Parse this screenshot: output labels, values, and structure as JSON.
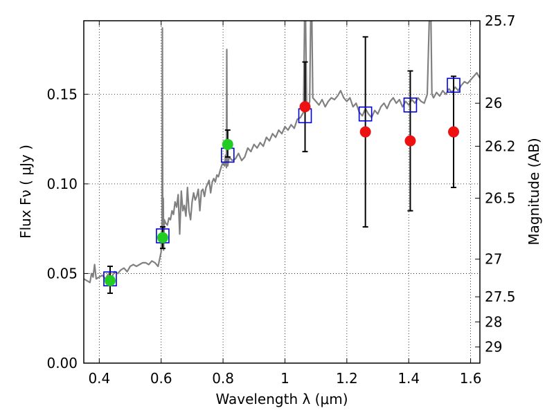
{
  "chart_data": {
    "type": "scatter",
    "xlabel": "Wavelength  λ (μm)",
    "ylabel": "Flux  Fν  ( μJy )",
    "y2label": "Magnitude (AB)",
    "xlim": [
      0.35,
      1.63
    ],
    "ylim": [
      0.0,
      0.191
    ],
    "x_ticks": [
      0.4,
      0.6,
      0.8,
      1.0,
      1.2,
      1.4,
      1.6
    ],
    "x_tick_labels": [
      "0.4",
      "0.6",
      "0.8",
      "1",
      "1.2",
      "1.4",
      "1.6"
    ],
    "y_ticks": [
      0.0,
      0.05,
      0.1,
      0.15
    ],
    "y_tick_labels": [
      "0.00",
      "0.05",
      "0.10",
      "0.15"
    ],
    "y2_ticks": [
      {
        "label": "25.7",
        "flux": 0.191
      },
      {
        "label": "26",
        "flux": 0.145
      },
      {
        "label": "26.2",
        "flux": 0.121
      },
      {
        "label": "26.5",
        "flux": 0.092
      },
      {
        "label": "27",
        "flux": 0.058
      },
      {
        "label": "27.5",
        "flux": 0.037
      },
      {
        "label": "28",
        "flux": 0.023
      },
      {
        "label": "29",
        "flux": 0.009
      }
    ],
    "grid": true,
    "colors": {
      "model": "#808080",
      "green": "#22cc22",
      "red": "#ee1111",
      "box": "#0000dd",
      "error": "#000000"
    },
    "series": [
      {
        "name": "model spectrum",
        "kind": "line",
        "points": [
          [
            0.35,
            0.047
          ],
          [
            0.36,
            0.046
          ],
          [
            0.37,
            0.045
          ],
          [
            0.375,
            0.05
          ],
          [
            0.38,
            0.048
          ],
          [
            0.385,
            0.055
          ],
          [
            0.39,
            0.047
          ],
          [
            0.4,
            0.048
          ],
          [
            0.41,
            0.049
          ],
          [
            0.42,
            0.047
          ],
          [
            0.43,
            0.05
          ],
          [
            0.44,
            0.048
          ],
          [
            0.45,
            0.051
          ],
          [
            0.46,
            0.05
          ],
          [
            0.47,
            0.052
          ],
          [
            0.48,
            0.053
          ],
          [
            0.49,
            0.051
          ],
          [
            0.5,
            0.054
          ],
          [
            0.51,
            0.055
          ],
          [
            0.52,
            0.054
          ],
          [
            0.53,
            0.055
          ],
          [
            0.54,
            0.056
          ],
          [
            0.55,
            0.056
          ],
          [
            0.56,
            0.055
          ],
          [
            0.57,
            0.057
          ],
          [
            0.58,
            0.056
          ],
          [
            0.59,
            0.054
          ],
          [
            0.595,
            0.058
          ],
          [
            0.6,
            0.062
          ],
          [
            0.601,
            0.07
          ],
          [
            0.602,
            0.075
          ],
          [
            0.603,
            0.078
          ],
          [
            0.604,
            0.187
          ],
          [
            0.605,
            0.078
          ],
          [
            0.606,
            0.075
          ],
          [
            0.607,
            0.092
          ],
          [
            0.608,
            0.063
          ],
          [
            0.61,
            0.08
          ],
          [
            0.615,
            0.078
          ],
          [
            0.62,
            0.077
          ],
          [
            0.625,
            0.081
          ],
          [
            0.63,
            0.08
          ],
          [
            0.635,
            0.085
          ],
          [
            0.64,
            0.083
          ],
          [
            0.645,
            0.09
          ],
          [
            0.65,
            0.087
          ],
          [
            0.655,
            0.094
          ],
          [
            0.66,
            0.072
          ],
          [
            0.665,
            0.096
          ],
          [
            0.67,
            0.085
          ],
          [
            0.675,
            0.088
          ],
          [
            0.68,
            0.082
          ],
          [
            0.685,
            0.098
          ],
          [
            0.69,
            0.085
          ],
          [
            0.695,
            0.08
          ],
          [
            0.7,
            0.09
          ],
          [
            0.705,
            0.095
          ],
          [
            0.71,
            0.091
          ],
          [
            0.715,
            0.093
          ],
          [
            0.72,
            0.097
          ],
          [
            0.725,
            0.085
          ],
          [
            0.73,
            0.096
          ],
          [
            0.735,
            0.097
          ],
          [
            0.74,
            0.093
          ],
          [
            0.745,
            0.098
          ],
          [
            0.75,
            0.1
          ],
          [
            0.755,
            0.102
          ],
          [
            0.76,
            0.095
          ],
          [
            0.765,
            0.101
          ],
          [
            0.77,
            0.103
          ],
          [
            0.775,
            0.101
          ],
          [
            0.78,
            0.105
          ],
          [
            0.785,
            0.104
          ],
          [
            0.79,
            0.107
          ],
          [
            0.795,
            0.11
          ],
          [
            0.8,
            0.112
          ],
          [
            0.805,
            0.11
          ],
          [
            0.808,
            0.116
          ],
          [
            0.811,
            0.109
          ],
          [
            0.812,
            0.175
          ],
          [
            0.813,
            0.118
          ],
          [
            0.815,
            0.11
          ],
          [
            0.82,
            0.115
          ],
          [
            0.83,
            0.113
          ],
          [
            0.84,
            0.114
          ],
          [
            0.85,
            0.117
          ],
          [
            0.86,
            0.113
          ],
          [
            0.87,
            0.115
          ],
          [
            0.88,
            0.12
          ],
          [
            0.89,
            0.118
          ],
          [
            0.9,
            0.122
          ],
          [
            0.91,
            0.12
          ],
          [
            0.92,
            0.123
          ],
          [
            0.93,
            0.121
          ],
          [
            0.94,
            0.126
          ],
          [
            0.95,
            0.124
          ],
          [
            0.96,
            0.128
          ],
          [
            0.97,
            0.126
          ],
          [
            0.98,
            0.13
          ],
          [
            0.99,
            0.128
          ],
          [
            1.0,
            0.132
          ],
          [
            1.01,
            0.13
          ],
          [
            1.02,
            0.133
          ],
          [
            1.03,
            0.131
          ],
          [
            1.04,
            0.136
          ],
          [
            1.05,
            0.137
          ],
          [
            1.06,
            0.14
          ],
          [
            1.065,
            0.215
          ],
          [
            1.07,
            0.145
          ],
          [
            1.075,
            0.142
          ],
          [
            1.08,
            0.146
          ],
          [
            1.085,
            0.22
          ],
          [
            1.09,
            0.148
          ],
          [
            1.1,
            0.146
          ],
          [
            1.11,
            0.144
          ],
          [
            1.12,
            0.147
          ],
          [
            1.13,
            0.143
          ],
          [
            1.14,
            0.146
          ],
          [
            1.15,
            0.148
          ],
          [
            1.16,
            0.147
          ],
          [
            1.17,
            0.149
          ],
          [
            1.18,
            0.152
          ],
          [
            1.19,
            0.148
          ],
          [
            1.2,
            0.146
          ],
          [
            1.21,
            0.148
          ],
          [
            1.22,
            0.143
          ],
          [
            1.23,
            0.145
          ],
          [
            1.24,
            0.14
          ],
          [
            1.25,
            0.138
          ],
          [
            1.26,
            0.142
          ],
          [
            1.27,
            0.139
          ],
          [
            1.28,
            0.137
          ],
          [
            1.29,
            0.141
          ],
          [
            1.3,
            0.139
          ],
          [
            1.31,
            0.143
          ],
          [
            1.32,
            0.145
          ],
          [
            1.33,
            0.142
          ],
          [
            1.34,
            0.146
          ],
          [
            1.35,
            0.148
          ],
          [
            1.36,
            0.145
          ],
          [
            1.37,
            0.147
          ],
          [
            1.38,
            0.143
          ],
          [
            1.39,
            0.146
          ],
          [
            1.4,
            0.144
          ],
          [
            1.41,
            0.147
          ],
          [
            1.42,
            0.145
          ],
          [
            1.43,
            0.148
          ],
          [
            1.44,
            0.146
          ],
          [
            1.45,
            0.145
          ],
          [
            1.46,
            0.15
          ],
          [
            1.47,
            0.215
          ],
          [
            1.475,
            0.15
          ],
          [
            1.48,
            0.148
          ],
          [
            1.49,
            0.151
          ],
          [
            1.5,
            0.149
          ],
          [
            1.51,
            0.152
          ],
          [
            1.52,
            0.15
          ],
          [
            1.53,
            0.153
          ],
          [
            1.54,
            0.151
          ],
          [
            1.55,
            0.154
          ],
          [
            1.56,
            0.152
          ],
          [
            1.57,
            0.155
          ],
          [
            1.58,
            0.157
          ],
          [
            1.59,
            0.156
          ],
          [
            1.6,
            0.158
          ],
          [
            1.61,
            0.16
          ],
          [
            1.62,
            0.162
          ],
          [
            1.63,
            0.159
          ]
        ]
      },
      {
        "name": "model photometry",
        "kind": "open-square",
        "points": [
          [
            0.435,
            0.047
          ],
          [
            0.605,
            0.071
          ],
          [
            0.815,
            0.116
          ],
          [
            1.065,
            0.138
          ],
          [
            1.26,
            0.139
          ],
          [
            1.405,
            0.144
          ],
          [
            1.545,
            0.155
          ]
        ]
      },
      {
        "name": "observed (green)",
        "kind": "filled-circle",
        "points": [
          {
            "x": 0.435,
            "y": 0.046,
            "lo": 0.039,
            "hi": 0.054
          },
          {
            "x": 0.605,
            "y": 0.07,
            "lo": 0.064,
            "hi": 0.076
          },
          {
            "x": 0.815,
            "y": 0.122,
            "lo": 0.115,
            "hi": 0.13
          }
        ]
      },
      {
        "name": "observed (red)",
        "kind": "filled-circle",
        "points": [
          {
            "x": 1.065,
            "y": 0.143,
            "lo": 0.118,
            "hi": 0.168
          },
          {
            "x": 1.26,
            "y": 0.129,
            "lo": 0.076,
            "hi": 0.182
          },
          {
            "x": 1.405,
            "y": 0.124,
            "lo": 0.085,
            "hi": 0.163
          },
          {
            "x": 1.545,
            "y": 0.129,
            "lo": 0.098,
            "hi": 0.16
          }
        ]
      }
    ]
  }
}
